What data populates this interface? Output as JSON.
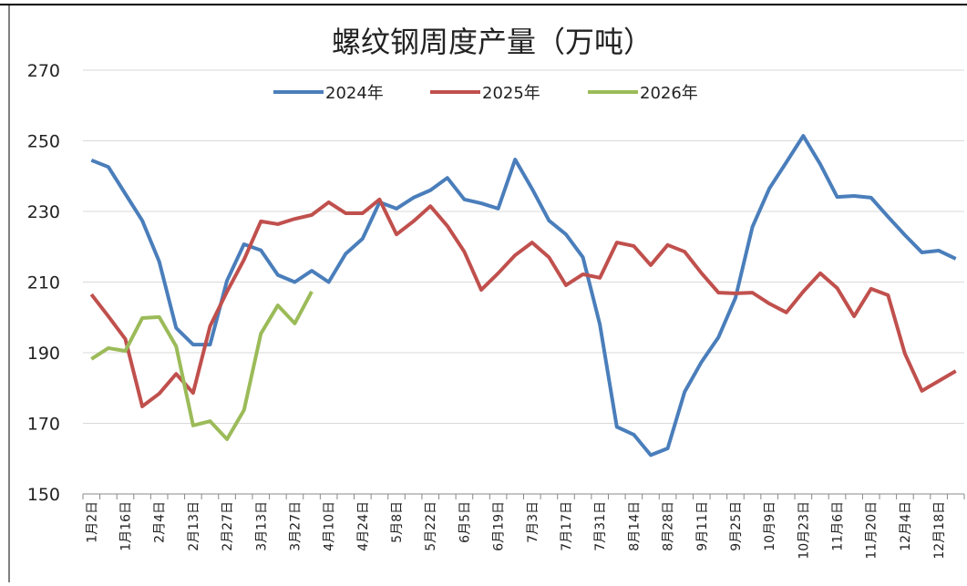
{
  "chart_data": {
    "type": "line",
    "title": "螺纹钢周度产量（万吨）",
    "categories": [
      "1月2日",
      null,
      "1月16日",
      null,
      "2月4日",
      null,
      "2月13日",
      null,
      "2月27日",
      null,
      "3月13日",
      null,
      "3月27日",
      null,
      "4月10日",
      null,
      "4月24日",
      null,
      "5月8日",
      null,
      "5月22日",
      null,
      "6月5日",
      null,
      "6月19日",
      null,
      "7月3日",
      null,
      "7月17日",
      null,
      "7月31日",
      null,
      "8月14日",
      null,
      "8月28日",
      null,
      "9月11日",
      null,
      "9月25日",
      null,
      "10月9日",
      null,
      "10月23日",
      null,
      "11月6日",
      null,
      "11月20日",
      null,
      "12月4日",
      null,
      "12月18日",
      null
    ],
    "series": [
      {
        "name": "2024年",
        "color": "#4a7ebb",
        "values": [
          244.5,
          242.6,
          235,
          227.4,
          215.8,
          197,
          192.3,
          192.3,
          210.4,
          220.7,
          219,
          212,
          210,
          213.2,
          210,
          218,
          222.3,
          232.6,
          230.8,
          233.9,
          236,
          239.5,
          233.4,
          232.3,
          230.8,
          244.7,
          236.4,
          227.4,
          223.5,
          217,
          198,
          169,
          166.8,
          161,
          162.9,
          178.9,
          187.4,
          194.4,
          205.5,
          225.6,
          236.5,
          243.9,
          251.4,
          243.4,
          234.1,
          234.4,
          233.9,
          228.5,
          223.3,
          218.4,
          218.9,
          216.6
        ]
      },
      {
        "name": "2025年",
        "color": "#c0504d",
        "values": [
          206.5,
          200.3,
          193.9,
          174.8,
          178.4,
          184,
          178.6,
          197.5,
          207.3,
          216.3,
          227.2,
          226.4,
          227.9,
          229,
          232.6,
          229.5,
          229.5,
          233.4,
          223.5,
          227.2,
          231.5,
          225.9,
          218.6,
          207.8,
          212.5,
          217.6,
          221.2,
          217,
          209.1,
          212.2,
          211.2,
          221.2,
          220.2,
          214.8,
          220.5,
          218.6,
          212.5,
          207,
          206.8,
          207,
          203.9,
          201.4,
          207.3,
          212.5,
          208.3,
          200.3,
          208.1,
          206.3,
          189.7,
          179.2,
          182,
          184.8
        ]
      },
      {
        "name": "2026年",
        "color": "#9bbb59",
        "values": [
          188.2,
          191.3,
          190.5,
          199.8,
          200.1,
          191.8,
          169.4,
          170.6,
          165.5,
          173.7,
          195.4,
          203.4,
          198.3,
          207.3,
          null,
          null,
          null,
          null,
          null,
          null,
          null,
          null,
          null,
          null,
          null,
          null,
          null,
          null,
          null,
          null,
          null,
          null,
          null,
          null,
          null,
          null,
          null,
          null,
          null,
          null,
          null,
          null,
          null,
          null,
          null,
          null,
          null,
          null,
          null,
          null,
          null,
          null
        ]
      }
    ],
    "ylim": [
      150,
      270
    ],
    "yticks": [
      150,
      170,
      190,
      210,
      230,
      250,
      270
    ],
    "grid": true
  }
}
